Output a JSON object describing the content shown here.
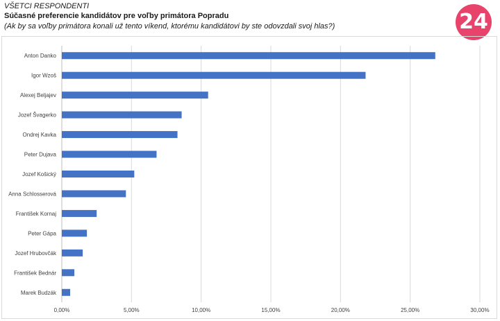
{
  "header": {
    "segment": "VŠETCI RESPONDENTI",
    "title": "Súčasné preferencie kandidátov pre voľby primátora Popradu",
    "question": "(Ak by sa voľby primátora konali už tento víkend, ktorému kandidátovi by ste odovzdali svoj hlas?)"
  },
  "logo": {
    "text": "24",
    "color": "#e8436a"
  },
  "chart_data": {
    "type": "bar",
    "orientation": "horizontal",
    "categories": [
      "Anton Danko",
      "Igor Wzoš",
      "Alexej Beljajev",
      "Jozef Švagerko",
      "Ondrej Kavka",
      "Peter Dujava",
      "Jozef Košický",
      "Anna Schlosserová",
      "František Kornaj",
      "Peter Gápa",
      "Jozef Hrubovčák",
      "František Bednár",
      "Marek Budzák"
    ],
    "values": [
      26.8,
      21.8,
      10.5,
      8.6,
      8.3,
      6.8,
      5.2,
      4.6,
      2.5,
      1.8,
      1.5,
      0.9,
      0.6
    ],
    "xlim": [
      0,
      30
    ],
    "xticks": [
      0,
      5,
      10,
      15,
      20,
      25,
      30
    ],
    "xtick_labels": [
      "0,00%",
      "5,00%",
      "10,00%",
      "15,00%",
      "20,00%",
      "25,00%",
      "30,00%"
    ],
    "grid": "vertical",
    "bar_color": "#4472c4",
    "grid_color": "#d9d9d9"
  }
}
